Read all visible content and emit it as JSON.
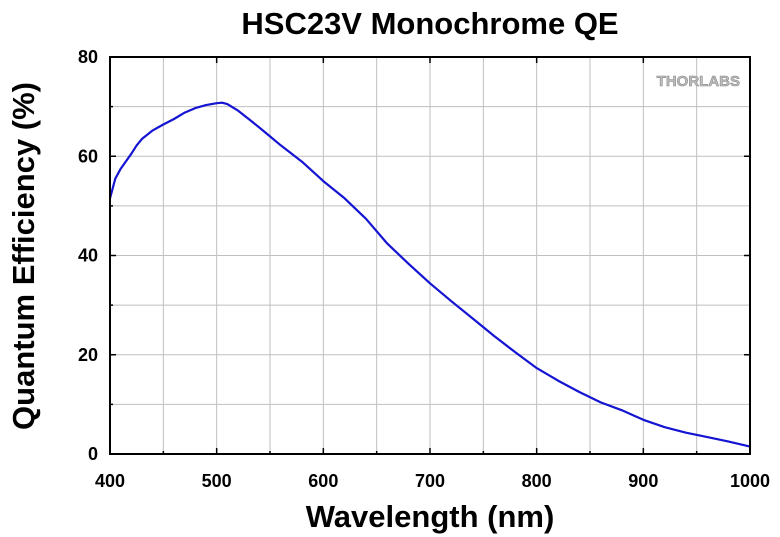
{
  "chart_data": {
    "type": "line",
    "title": "HSC23V Monochrome QE",
    "xlabel": "Wavelength (nm)",
    "ylabel": "Quantum Efficiency (%)",
    "xlim": [
      400,
      1000
    ],
    "ylim": [
      0,
      80
    ],
    "xticks": [
      400,
      500,
      600,
      700,
      800,
      900,
      1000
    ],
    "yticks": [
      0,
      20,
      40,
      60,
      80
    ],
    "grid": true,
    "legend": "none",
    "watermark": "THORLABS",
    "colors": {
      "line": "#1414d2",
      "grid": "#bfbfbf",
      "axis": "#000000"
    },
    "series": [
      {
        "name": "HSC23V Monochrome",
        "x": [
          400,
          405,
          410,
          415,
          420,
          425,
          430,
          440,
          450,
          460,
          470,
          480,
          490,
          500,
          505,
          510,
          520,
          530,
          540,
          550,
          560,
          580,
          600,
          620,
          640,
          660,
          680,
          700,
          720,
          740,
          760,
          780,
          800,
          820,
          840,
          860,
          880,
          900,
          920,
          940,
          960,
          980,
          1000
        ],
        "y": [
          51.5,
          55.5,
          57.5,
          59.0,
          60.5,
          62.2,
          63.5,
          65.2,
          66.4,
          67.5,
          68.8,
          69.7,
          70.3,
          70.7,
          70.8,
          70.5,
          69.2,
          67.5,
          65.8,
          64.0,
          62.2,
          58.9,
          55.0,
          51.5,
          47.4,
          42.4,
          38.3,
          34.4,
          30.8,
          27.3,
          23.8,
          20.5,
          17.3,
          14.8,
          12.5,
          10.4,
          8.8,
          6.9,
          5.4,
          4.3,
          3.4,
          2.5,
          1.5
        ]
      }
    ]
  }
}
